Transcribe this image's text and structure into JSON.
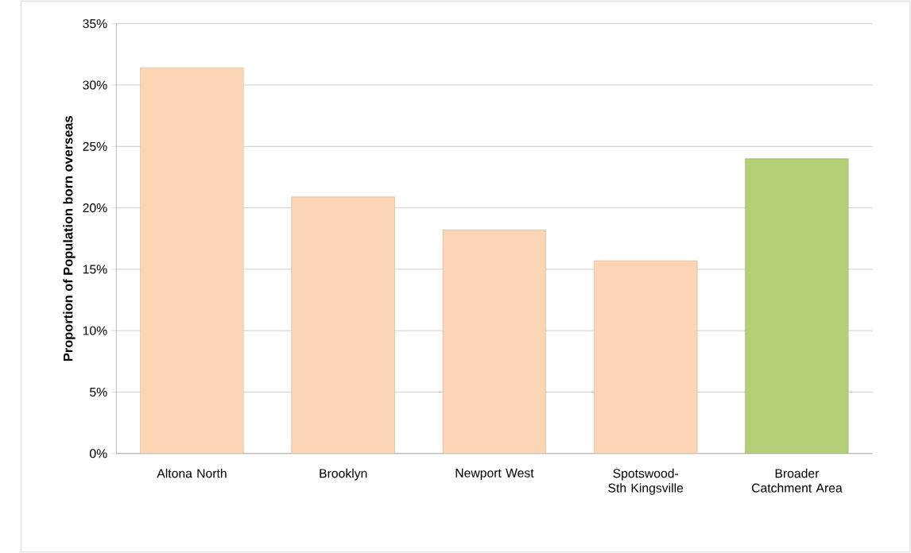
{
  "chart_data": {
    "type": "bar",
    "ylabel": "Proportion of Population born overseas",
    "categories": [
      "Altona North",
      "Brooklyn",
      "Newport West",
      "Spotswood-Sth Kingsville",
      "Broader Catchment Area"
    ],
    "values": [
      31.4,
      20.9,
      18.2,
      15.7,
      24.0
    ],
    "colors": [
      "#fcd5b4",
      "#fcd5b4",
      "#fcd5b4",
      "#fcd5b4",
      "#b3cf75"
    ],
    "ylim": [
      0,
      35
    ],
    "yticks": [
      {
        "value": 0,
        "label": "0%"
      },
      {
        "value": 5,
        "label": "5%"
      },
      {
        "value": 10,
        "label": "10%"
      },
      {
        "value": 15,
        "label": "15%"
      },
      {
        "value": 20,
        "label": "20%"
      },
      {
        "value": 25,
        "label": "25%"
      },
      {
        "value": 30,
        "label": "30%"
      },
      {
        "value": 35,
        "label": "35%"
      }
    ],
    "grid": "y"
  }
}
